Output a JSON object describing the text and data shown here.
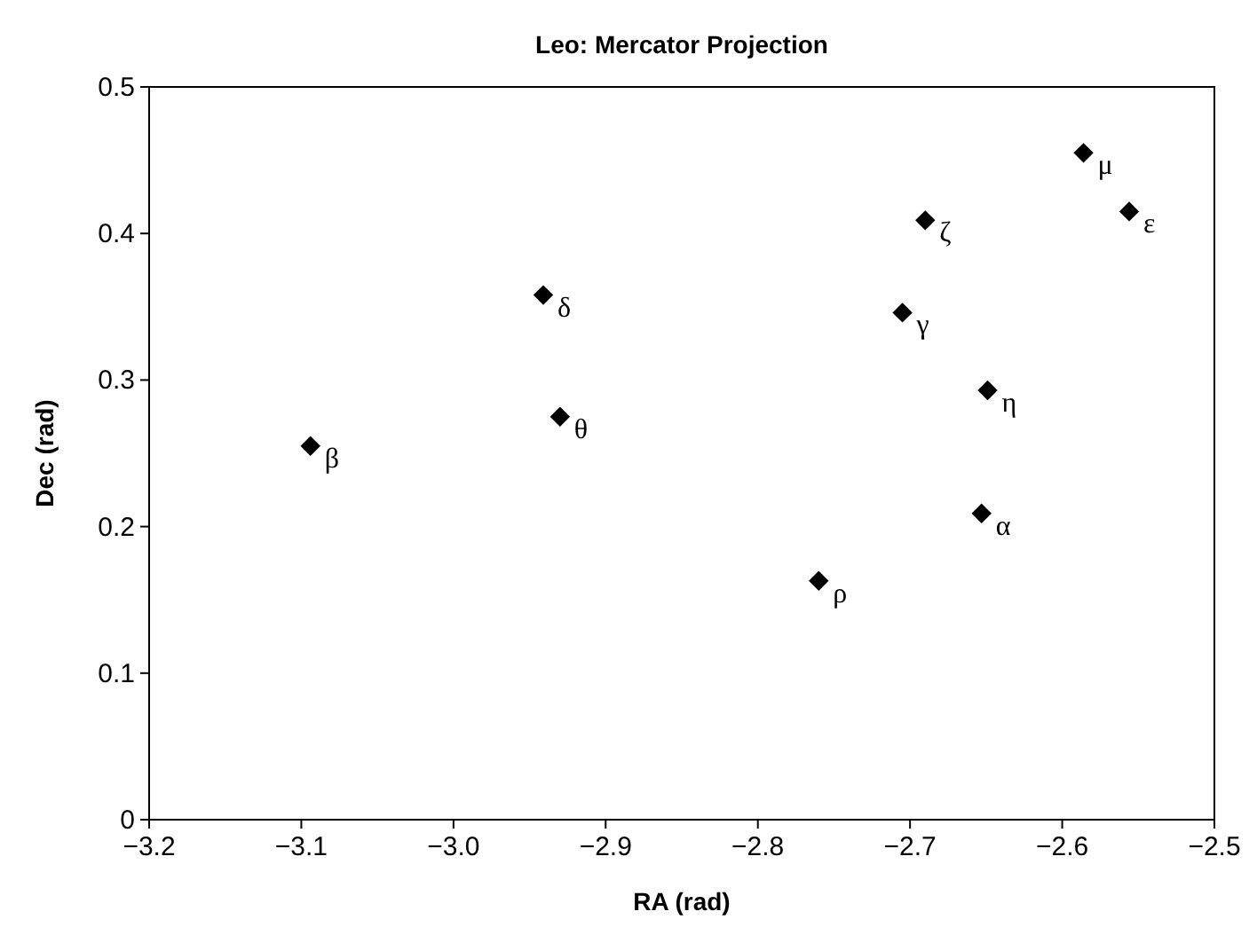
{
  "chart_data": {
    "type": "scatter",
    "title": "Leo: Mercator Projection",
    "xlabel": "RA (rad)",
    "ylabel": "Dec (rad)",
    "x": [
      -3.094,
      -2.941,
      -2.93,
      -2.586,
      -2.556,
      -2.69,
      -2.705,
      -2.649,
      -2.653,
      -2.76
    ],
    "values": [
      0.255,
      0.358,
      0.275,
      0.455,
      0.415,
      0.409,
      0.346,
      0.293,
      0.209,
      0.163
    ],
    "color": "#000000",
    "marker": "diamond",
    "grid": false,
    "xlim": [
      -3.2,
      -2.5
    ],
    "xticks": [
      {
        "value": -3.2,
        "label": "−3.2"
      },
      {
        "value": -3.1,
        "label": "−3.1"
      },
      {
        "value": -3.0,
        "label": "−3.0"
      },
      {
        "value": -2.9,
        "label": "−2.9"
      },
      {
        "value": -2.8,
        "label": "−2.8"
      },
      {
        "value": -2.7,
        "label": "−2.7"
      },
      {
        "value": -2.6,
        "label": "−2.6"
      },
      {
        "value": -2.5,
        "label": "−2.5"
      }
    ],
    "ylim": [
      0,
      0.5
    ],
    "yticks": [
      0,
      0.1,
      0.2,
      0.3,
      0.4,
      0.5
    ],
    "annotations": [
      {
        "text": "β",
        "x": -3.094,
        "y": 0.255
      },
      {
        "text": "δ",
        "x": -2.941,
        "y": 0.358
      },
      {
        "text": "θ",
        "x": -2.93,
        "y": 0.275
      },
      {
        "text": "μ",
        "x": -2.586,
        "y": 0.455
      },
      {
        "text": "ε",
        "x": -2.556,
        "y": 0.415
      },
      {
        "text": "ζ",
        "x": -2.69,
        "y": 0.409
      },
      {
        "text": "γ",
        "x": -2.705,
        "y": 0.346
      },
      {
        "text": "η",
        "x": -2.649,
        "y": 0.293
      },
      {
        "text": "α",
        "x": -2.653,
        "y": 0.209
      },
      {
        "text": "ρ",
        "x": -2.76,
        "y": 0.163
      }
    ]
  }
}
